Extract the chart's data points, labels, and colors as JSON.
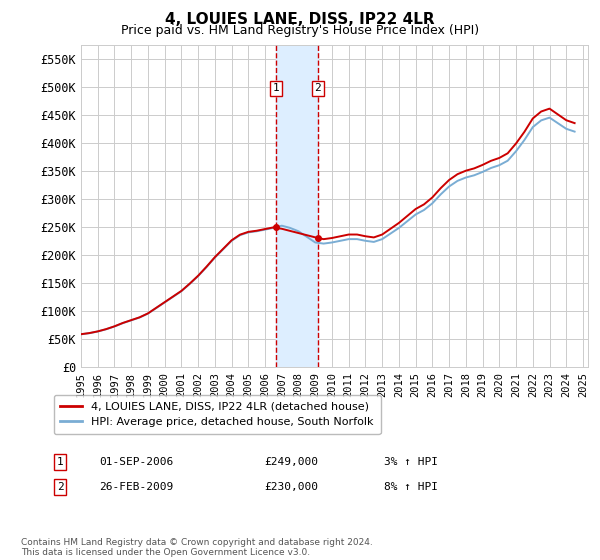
{
  "title": "4, LOUIES LANE, DISS, IP22 4LR",
  "subtitle": "Price paid vs. HM Land Registry's House Price Index (HPI)",
  "ylim": [
    0,
    575000
  ],
  "yticks": [
    0,
    50000,
    100000,
    150000,
    200000,
    250000,
    300000,
    350000,
    400000,
    450000,
    500000,
    550000
  ],
  "ytick_labels": [
    "£0",
    "£50K",
    "£100K",
    "£150K",
    "£200K",
    "£250K",
    "£300K",
    "£350K",
    "£400K",
    "£450K",
    "£500K",
    "£550K"
  ],
  "sale1_date": 2006.67,
  "sale1_price": 249000,
  "sale1_label": "1",
  "sale2_date": 2009.15,
  "sale2_price": 230000,
  "sale2_label": "2",
  "transaction1": "01-SEP-2006",
  "transaction1_price": "£249,000",
  "transaction1_hpi": "3% ↑ HPI",
  "transaction2": "26-FEB-2009",
  "transaction2_price": "£230,000",
  "transaction2_hpi": "8% ↑ HPI",
  "legend_line1": "4, LOUIES LANE, DISS, IP22 4LR (detached house)",
  "legend_line2": "HPI: Average price, detached house, South Norfolk",
  "footer": "Contains HM Land Registry data © Crown copyright and database right 2024.\nThis data is licensed under the Open Government Licence v3.0.",
  "line_color_red": "#cc0000",
  "line_color_blue": "#7aadd4",
  "shade_color": "#ddeeff",
  "grid_color": "#cccccc",
  "background_color": "#ffffff",
  "years_hpi": [
    1995.0,
    1995.5,
    1996.0,
    1996.5,
    1997.0,
    1997.5,
    1998.0,
    1998.5,
    1999.0,
    1999.5,
    2000.0,
    2000.5,
    2001.0,
    2001.5,
    2002.0,
    2002.5,
    2003.0,
    2003.5,
    2004.0,
    2004.5,
    2005.0,
    2005.5,
    2006.0,
    2006.5,
    2007.0,
    2007.5,
    2008.0,
    2008.5,
    2009.0,
    2009.5,
    2010.0,
    2010.5,
    2011.0,
    2011.5,
    2012.0,
    2012.5,
    2013.0,
    2013.5,
    2014.0,
    2014.5,
    2015.0,
    2015.5,
    2016.0,
    2016.5,
    2017.0,
    2017.5,
    2018.0,
    2018.5,
    2019.0,
    2019.5,
    2020.0,
    2020.5,
    2021.0,
    2021.5,
    2022.0,
    2022.5,
    2023.0,
    2023.5,
    2024.0,
    2024.5
  ],
  "hpi_values": [
    58000,
    60000,
    63000,
    67000,
    72000,
    78000,
    83000,
    88000,
    95000,
    105000,
    115000,
    125000,
    135000,
    148000,
    162000,
    178000,
    195000,
    210000,
    225000,
    235000,
    240000,
    242000,
    245000,
    248000,
    252000,
    248000,
    242000,
    232000,
    222000,
    220000,
    222000,
    225000,
    228000,
    228000,
    225000,
    223000,
    228000,
    238000,
    248000,
    260000,
    272000,
    280000,
    292000,
    308000,
    322000,
    332000,
    338000,
    342000,
    348000,
    355000,
    360000,
    368000,
    385000,
    405000,
    428000,
    440000,
    445000,
    435000,
    425000,
    420000
  ]
}
